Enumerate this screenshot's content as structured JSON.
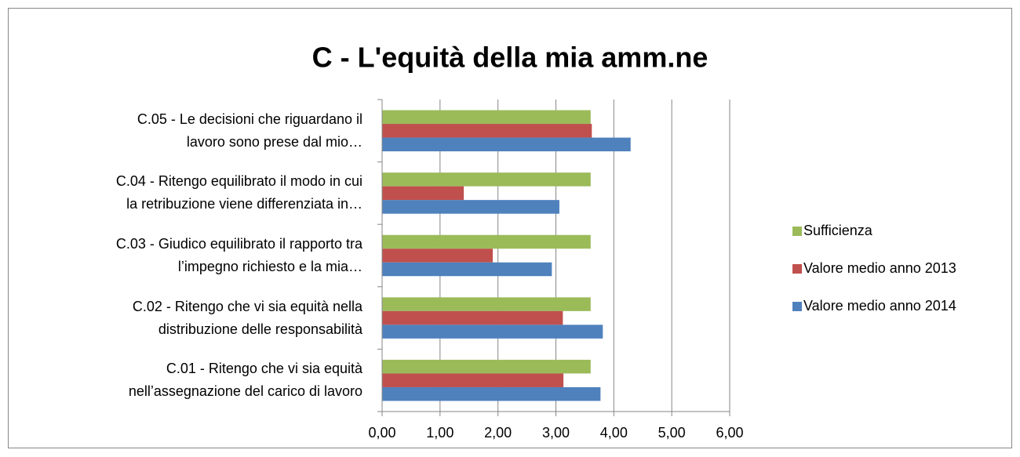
{
  "chart_data": {
    "type": "bar",
    "orientation": "horizontal",
    "title": "C - L'equità della mia amm.ne",
    "categories": [
      "C.05 - Le decisioni che riguardano il\nlavoro sono prese dal mio…",
      "C.04 - Ritengo equilibrato il modo in cui\nla retribuzione viene differenziata in…",
      "C.03 - Giudico equilibrato il rapporto tra\nl’impegno richiesto e la mia…",
      "C.02 - Ritengo che vi sia equità nella\ndistribuzione delle responsabilità",
      "C.01 - Ritengo che vi sia equità\nnell’assegnazione del carico di lavoro"
    ],
    "series": [
      {
        "name": "Sufficienza",
        "color": "#9bbb59",
        "values": [
          3.6,
          3.6,
          3.6,
          3.6,
          3.6
        ]
      },
      {
        "name": "Valore medio anno 2013",
        "color": "#c0504d",
        "values": [
          3.62,
          1.41,
          1.91,
          3.12,
          3.13
        ]
      },
      {
        "name": "Valore medio anno 2014",
        "color": "#4f81bd",
        "values": [
          4.29,
          3.06,
          2.93,
          3.81,
          3.77
        ]
      }
    ],
    "xlim": [
      0,
      6
    ],
    "xticks": [
      {
        "value": 0,
        "label": "0,00"
      },
      {
        "value": 1,
        "label": "1,00"
      },
      {
        "value": 2,
        "label": "2,00"
      },
      {
        "value": 3,
        "label": "3,00"
      },
      {
        "value": 4,
        "label": "4,00"
      },
      {
        "value": 5,
        "label": "5,00"
      },
      {
        "value": 6,
        "label": "6,00"
      }
    ],
    "grid": true,
    "legend": "right"
  }
}
